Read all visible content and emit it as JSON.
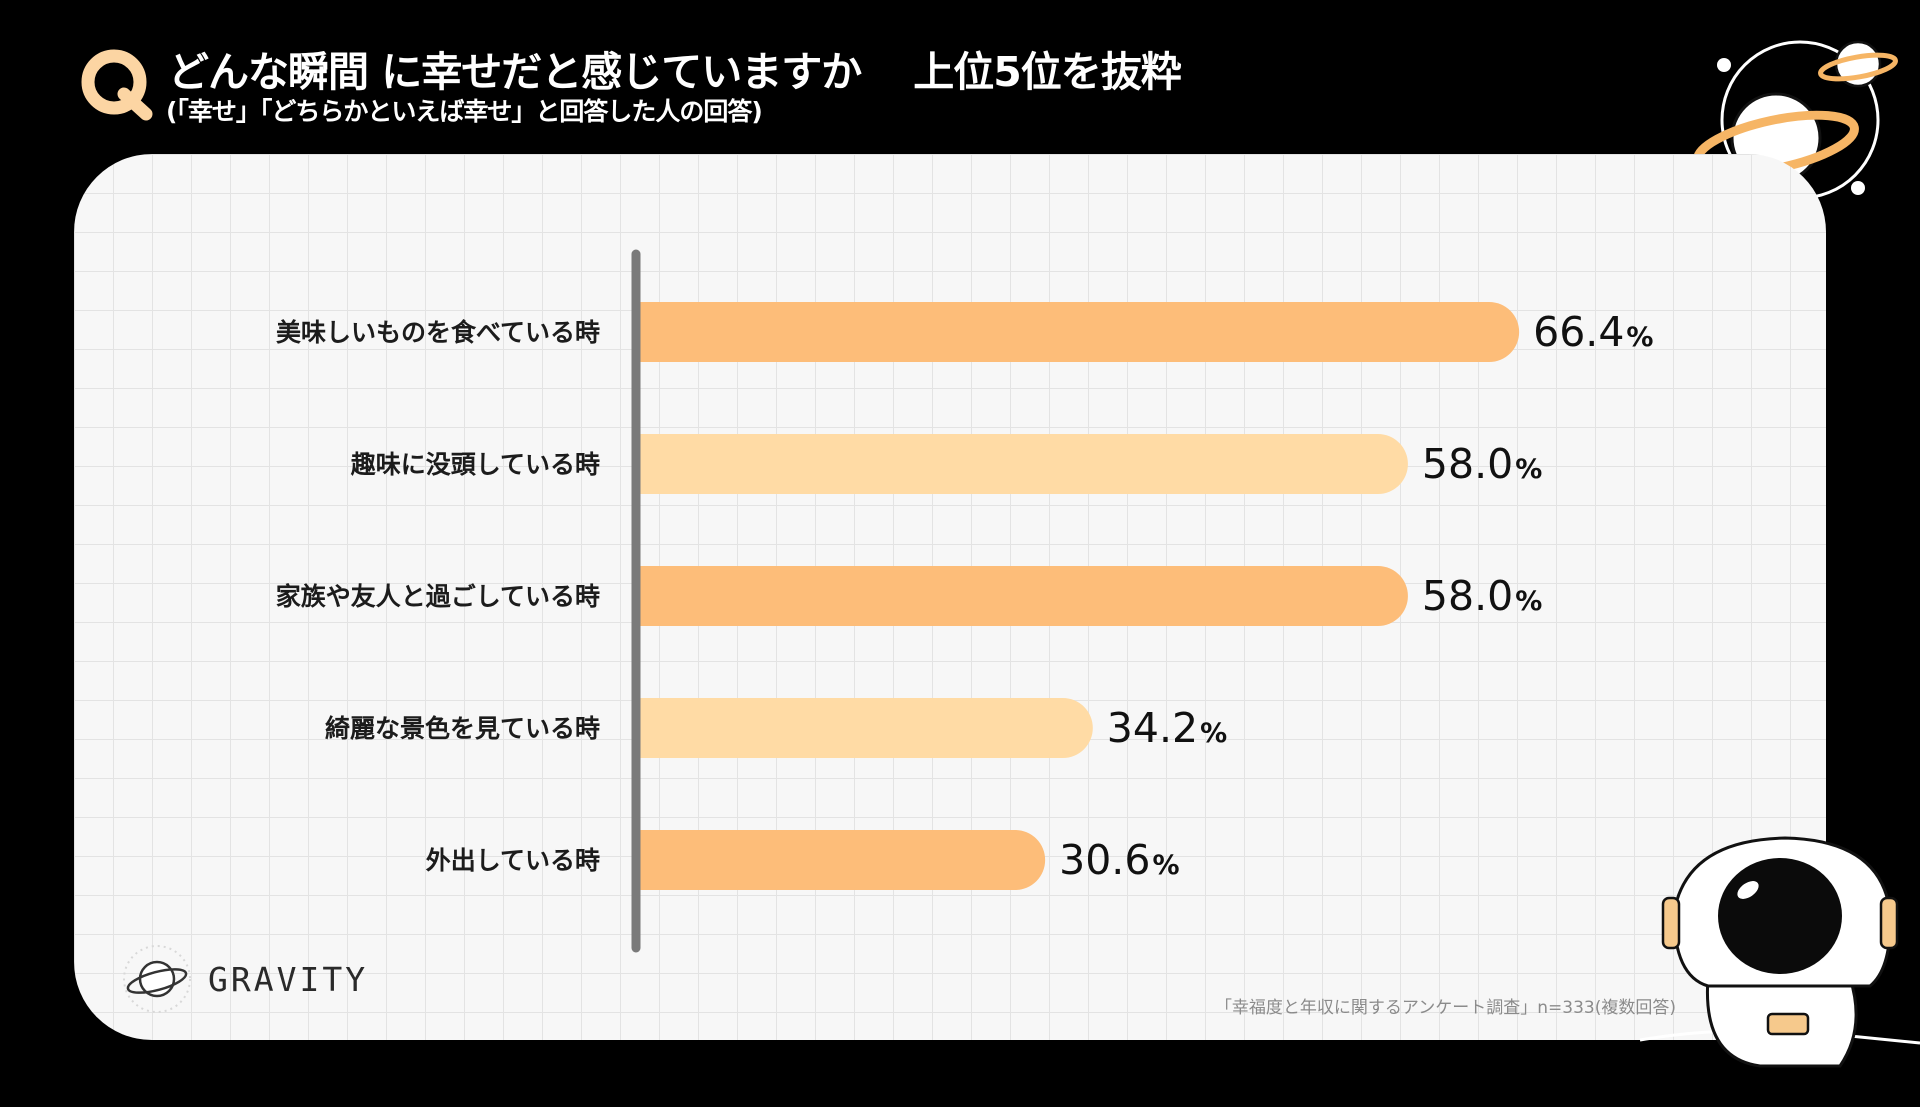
{
  "header": {
    "q_mark": "Q",
    "title": "どんな瞬間 に幸せだと感じていますか",
    "rank_note": "上位5位を抜粋",
    "subtitle": "(「幸せ」「どちらかといえば幸せ」と回答した人の回答)"
  },
  "chart_data": {
    "type": "bar",
    "orientation": "horizontal",
    "title": "どんな瞬間 に幸せだと感じていますか",
    "categories": [
      "美味しいものを食べている時",
      "趣味に没頭している時",
      "家族や友人と過ごしている時",
      "綺麗な景色を見ている時",
      "外出している時"
    ],
    "values": [
      66.4,
      58.0,
      58.0,
      34.2,
      30.6
    ],
    "value_labels": [
      "66.4",
      "58.0",
      "58.0",
      "34.2",
      "30.6"
    ],
    "unit": "%",
    "bar_colors": [
      "#fdbd79",
      "#ffdba5",
      "#fdbd79",
      "#ffdba5",
      "#fdbd79"
    ],
    "axis_color": "#7a7a7a",
    "xlim": [
      0,
      100
    ]
  },
  "footer": {
    "brand": "GRAVITY",
    "source": "「幸福度と年収に関するアンケート調査」n=333(複数回答)"
  },
  "colors": {
    "background": "#000000",
    "card": "#f7f7f7",
    "accent": "#fdbd79",
    "accent_light": "#ffdba5"
  }
}
